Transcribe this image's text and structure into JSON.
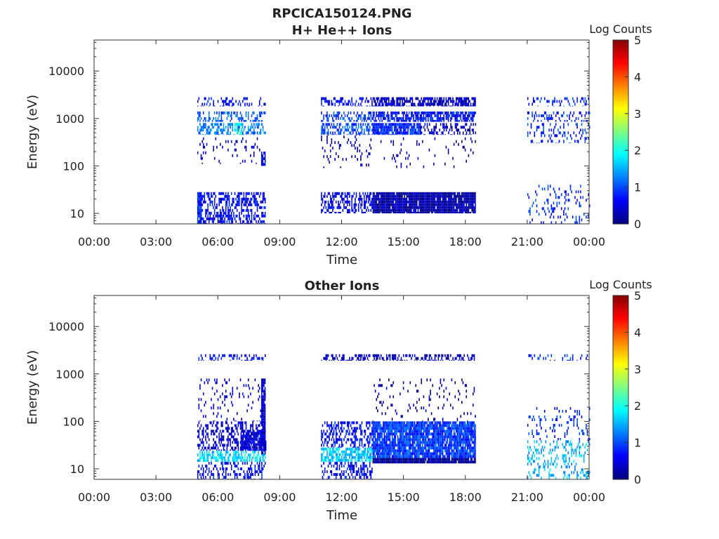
{
  "figure_title": "RPCICA150124.PNG",
  "chart_data": [
    {
      "type": "heatmap",
      "title": "H+ He++ Ions",
      "xlabel": "Time",
      "ylabel": "Energy (eV)",
      "x_ticks": [
        "00:00",
        "03:00",
        "06:00",
        "09:00",
        "12:00",
        "15:00",
        "18:00",
        "21:00",
        "00:00"
      ],
      "x_range_hours": [
        0,
        24
      ],
      "y_scale": "log",
      "y_range": [
        6,
        45000
      ],
      "y_ticks": [
        10,
        100,
        1000,
        10000
      ],
      "y_tick_labels": [
        "10",
        "100",
        "1000",
        "10000"
      ],
      "colorbar": {
        "label": "Log Counts",
        "range": [
          0,
          5
        ],
        "ticks": [
          "0",
          "1",
          "2",
          "3",
          "4",
          "5"
        ],
        "colormap": "jet"
      },
      "patches": [
        {
          "t": [
            5.0,
            8.3
          ],
          "e": [
            6,
            28
          ],
          "level": 0.6,
          "density": 0.5
        },
        {
          "t": [
            5.0,
            5.2
          ],
          "e": [
            6,
            28
          ],
          "level": 0.8,
          "density": 0.9
        },
        {
          "t": [
            5.0,
            8.3
          ],
          "e": [
            110,
            400
          ],
          "level": 0.3,
          "density": 0.08
        },
        {
          "t": [
            5.0,
            8.3
          ],
          "e": [
            450,
            800
          ],
          "level": 1.2,
          "density": 0.45
        },
        {
          "t": [
            6.8,
            7.2
          ],
          "e": [
            450,
            800
          ],
          "level": 2.0,
          "density": 0.7
        },
        {
          "t": [
            5.0,
            8.3
          ],
          "e": [
            850,
            1400
          ],
          "level": 1.0,
          "density": 0.4
        },
        {
          "t": [
            5.0,
            8.3
          ],
          "e": [
            1800,
            2800
          ],
          "level": 0.6,
          "density": 0.3
        },
        {
          "t": [
            8.1,
            8.3
          ],
          "e": [
            100,
            200
          ],
          "level": 0.5,
          "density": 0.9
        },
        {
          "t": [
            11.0,
            13.5
          ],
          "e": [
            10,
            28
          ],
          "level": 0.5,
          "density": 0.5
        },
        {
          "t": [
            13.5,
            18.5
          ],
          "e": [
            10,
            28
          ],
          "level": 0.2,
          "density": 0.95
        },
        {
          "t": [
            11.0,
            13.5
          ],
          "e": [
            90,
            500
          ],
          "level": 0.3,
          "density": 0.08
        },
        {
          "t": [
            13.5,
            18.5
          ],
          "e": [
            90,
            400
          ],
          "level": 0.2,
          "density": 0.05
        },
        {
          "t": [
            11.0,
            13.5
          ],
          "e": [
            450,
            800
          ],
          "level": 1.0,
          "density": 0.5
        },
        {
          "t": [
            13.5,
            15.8
          ],
          "e": [
            450,
            800
          ],
          "level": 0.8,
          "density": 0.85
        },
        {
          "t": [
            15.8,
            18.5
          ],
          "e": [
            450,
            800
          ],
          "level": 0.3,
          "density": 0.4
        },
        {
          "t": [
            11.0,
            13.5
          ],
          "e": [
            850,
            1400
          ],
          "level": 0.9,
          "density": 0.45
        },
        {
          "t": [
            13.5,
            18.5
          ],
          "e": [
            850,
            1400
          ],
          "level": 0.7,
          "density": 0.7
        },
        {
          "t": [
            11.0,
            13.5
          ],
          "e": [
            1800,
            2800
          ],
          "level": 0.6,
          "density": 0.35
        },
        {
          "t": [
            13.5,
            18.5
          ],
          "e": [
            1800,
            2800
          ],
          "level": 0.3,
          "density": 0.7
        },
        {
          "t": [
            21.0,
            24.0
          ],
          "e": [
            6,
            40
          ],
          "level": 0.8,
          "density": 0.15
        },
        {
          "t": [
            21.0,
            24.0
          ],
          "e": [
            300,
            800
          ],
          "level": 0.8,
          "density": 0.2
        },
        {
          "t": [
            21.0,
            24.0
          ],
          "e": [
            850,
            1400
          ],
          "level": 0.8,
          "density": 0.25
        },
        {
          "t": [
            21.0,
            24.0
          ],
          "e": [
            1800,
            2800
          ],
          "level": 0.8,
          "density": 0.2
        }
      ]
    },
    {
      "type": "heatmap",
      "title": "Other Ions",
      "xlabel": "Time",
      "ylabel": "Energy (eV)",
      "x_ticks": [
        "00:00",
        "03:00",
        "06:00",
        "09:00",
        "12:00",
        "15:00",
        "18:00",
        "21:00",
        "00:00"
      ],
      "x_range_hours": [
        0,
        24
      ],
      "y_scale": "log",
      "y_range": [
        6,
        45000
      ],
      "y_ticks": [
        10,
        100,
        1000,
        10000
      ],
      "y_tick_labels": [
        "10",
        "100",
        "1000",
        "10000"
      ],
      "colorbar": {
        "label": "Log Counts",
        "range": [
          0,
          5
        ],
        "ticks": [
          "0",
          "1",
          "2",
          "3",
          "4",
          "5"
        ],
        "colormap": "jet"
      },
      "patches": [
        {
          "t": [
            5.0,
            8.3
          ],
          "e": [
            6,
            14
          ],
          "level": 0.6,
          "density": 0.35
        },
        {
          "t": [
            5.0,
            8.3
          ],
          "e": [
            14,
            24
          ],
          "level": 1.7,
          "density": 0.6
        },
        {
          "t": [
            5.0,
            8.3
          ],
          "e": [
            24,
            100
          ],
          "level": 0.4,
          "density": 0.45
        },
        {
          "t": [
            7.1,
            8.3
          ],
          "e": [
            24,
            60
          ],
          "level": 0.5,
          "density": 0.8
        },
        {
          "t": [
            5.0,
            8.3
          ],
          "e": [
            100,
            800
          ],
          "level": 0.4,
          "density": 0.1
        },
        {
          "t": [
            5.0,
            8.3
          ],
          "e": [
            1900,
            2600
          ],
          "level": 0.6,
          "density": 0.3
        },
        {
          "t": [
            8.1,
            8.3
          ],
          "e": [
            20,
            800
          ],
          "level": 0.4,
          "density": 0.9
        },
        {
          "t": [
            11.0,
            13.5
          ],
          "e": [
            6,
            14
          ],
          "level": 0.6,
          "density": 0.4
        },
        {
          "t": [
            11.0,
            13.5
          ],
          "e": [
            14,
            28
          ],
          "level": 1.6,
          "density": 0.65
        },
        {
          "t": [
            11.0,
            13.5
          ],
          "e": [
            28,
            100
          ],
          "level": 0.6,
          "density": 0.4
        },
        {
          "t": [
            13.5,
            18.5
          ],
          "e": [
            13,
            17
          ],
          "level": 0.1,
          "density": 0.95
        },
        {
          "t": [
            13.5,
            18.5
          ],
          "e": [
            17,
            100
          ],
          "level": 0.9,
          "density": 0.9
        },
        {
          "t": [
            13.5,
            18.5
          ],
          "e": [
            100,
            800
          ],
          "level": 0.1,
          "density": 0.08
        },
        {
          "t": [
            11.0,
            18.5
          ],
          "e": [
            1900,
            2600
          ],
          "level": 0.3,
          "density": 0.45
        },
        {
          "t": [
            21.0,
            24.0
          ],
          "e": [
            6,
            40
          ],
          "level": 1.5,
          "density": 0.25
        },
        {
          "t": [
            21.0,
            24.0
          ],
          "e": [
            40,
            200
          ],
          "level": 0.8,
          "density": 0.12
        },
        {
          "t": [
            21.0,
            24.0
          ],
          "e": [
            1900,
            2600
          ],
          "level": 0.8,
          "density": 0.15
        }
      ]
    }
  ]
}
